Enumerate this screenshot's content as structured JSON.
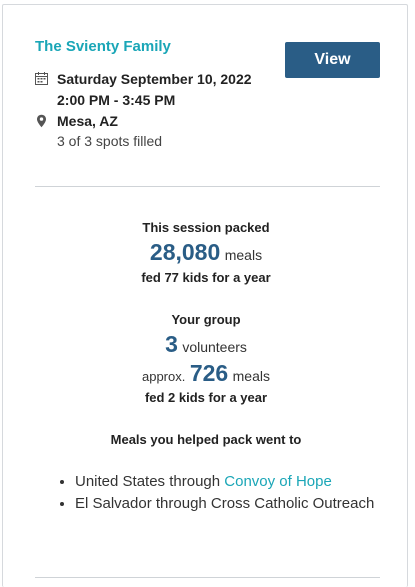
{
  "event": {
    "family_name": "The Svienty Family",
    "view_label": "View",
    "date": "Saturday September 10, 2022",
    "time": "2:00 PM - 3:45 PM",
    "location": "Mesa, AZ",
    "spots": "3 of 3 spots filled"
  },
  "session": {
    "heading": "This session packed",
    "meals_value": "28,080",
    "meals_unit": "meals",
    "fed_text": "fed 77 kids for a year"
  },
  "group": {
    "heading": "Your group",
    "volunteers_value": "3",
    "volunteers_unit": "volunteers",
    "approx_prefix": "approx.",
    "meals_value": "726",
    "meals_unit": "meals",
    "fed_text": "fed 2 kids for a year"
  },
  "destinations": {
    "heading": "Meals you helped pack went to",
    "items": [
      {
        "prefix": "United States through ",
        "link": "Convoy of Hope"
      },
      {
        "prefix": "El Salvador through Cross Catholic Outreach",
        "link": ""
      }
    ]
  },
  "colors": {
    "accent_teal": "#1aa6b7",
    "brand_blue": "#2a5d86"
  },
  "icons": [
    "calendar-icon",
    "map-pin-icon"
  ]
}
